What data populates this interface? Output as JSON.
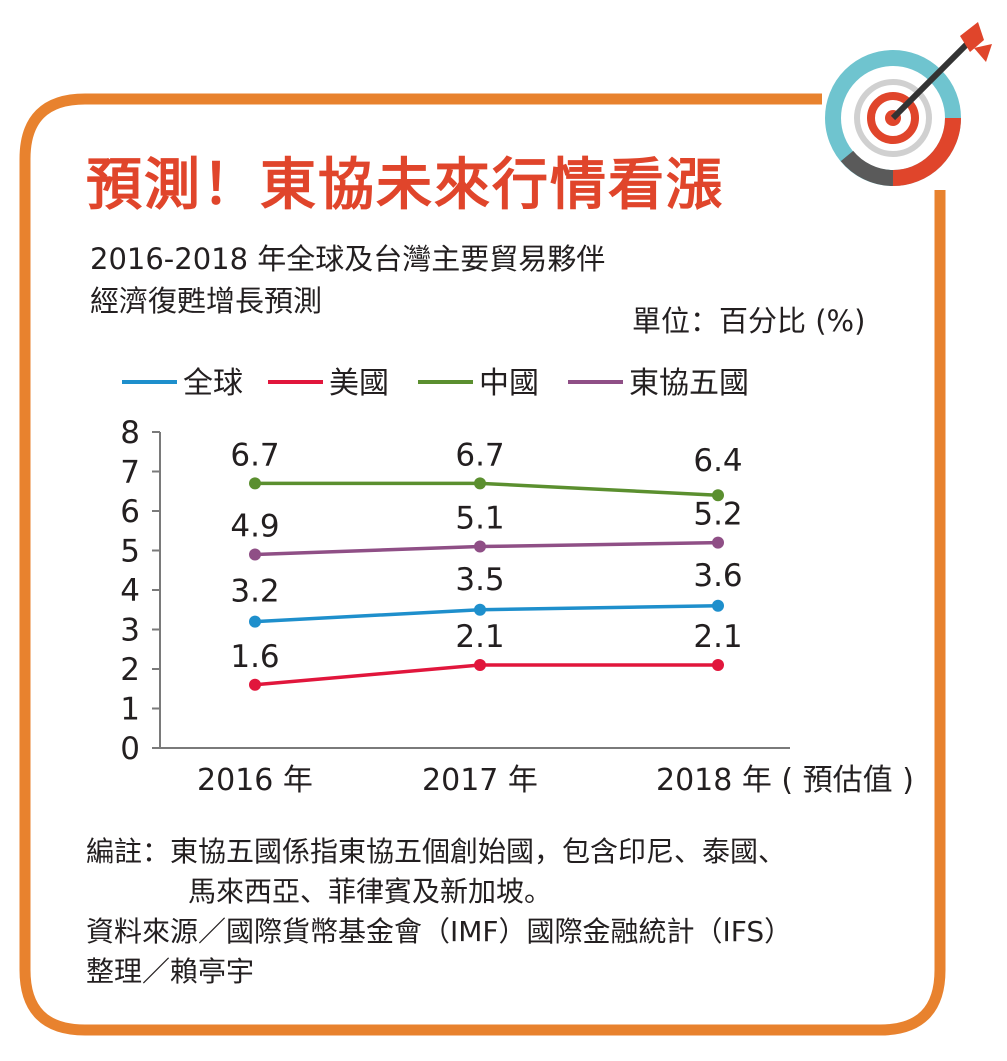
{
  "title": "預測！東協未來行情看漲",
  "subtitle_line1": "2016-2018 年全球及台灣主要貿易夥伴",
  "subtitle_line2": "經濟復甦增長預測",
  "unit": "單位：百分比 (%)",
  "note_line1": "編註：東協五國係指東協五個創始國，包含印尼、泰國、",
  "note_line2": "馬來西亞、菲律賓及新加坡。",
  "source": "資料來源／國際貨幣基金會（IMF）國際金融統計（IFS）",
  "credit": "整理／賴亭宇",
  "colors": {
    "accent": "#e0452b",
    "frame": "#e8822e",
    "target_teal": "#6fc4cf",
    "target_grey": "#5a5a5a"
  },
  "chart_data": {
    "type": "line",
    "categories": [
      "2016 年",
      "2017 年",
      "2018 年 ( 預估值 )"
    ],
    "ylim": [
      0,
      8
    ],
    "yticks": [
      0,
      1,
      2,
      3,
      4,
      5,
      6,
      7,
      8
    ],
    "legend_position": "top",
    "series": [
      {
        "name": "全球",
        "color": "#1e8fcc",
        "values": [
          3.2,
          3.5,
          3.6
        ]
      },
      {
        "name": "美國",
        "color": "#e1163c",
        "values": [
          1.6,
          2.1,
          2.1
        ]
      },
      {
        "name": "中國",
        "color": "#5b8f2f",
        "values": [
          6.7,
          6.7,
          6.4
        ]
      },
      {
        "name": "東協五國",
        "color": "#8f4f86",
        "values": [
          4.9,
          5.1,
          5.2
        ]
      }
    ]
  }
}
